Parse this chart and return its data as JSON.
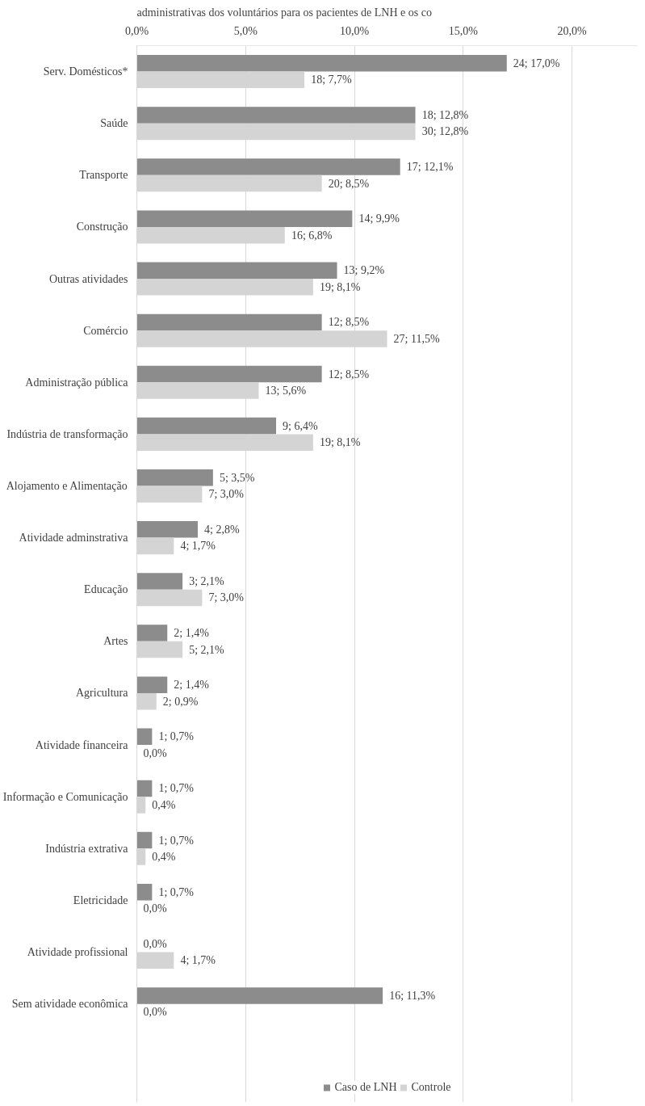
{
  "chart_data": {
    "type": "bar",
    "orientation": "horizontal",
    "title": "administrativas dos voluntários para os pacientes de LNH e os co",
    "categories": [
      "Serv. Domésticos*",
      "Saúde",
      "Transporte",
      "Construção",
      "Outras atividades",
      "Comércio",
      "Administração pública",
      "Indústria de transformação",
      "Alojamento e Alimentação",
      "Atividade adminstrativa",
      "Educação",
      "Artes",
      "Agricultura",
      "Atividade financeira",
      "Informação e Comunicação",
      "Indústria extrativa",
      "Eletricidade",
      "Atividade profissional",
      "Sem atividade econômica"
    ],
    "series": [
      {
        "name": "Caso de LNH",
        "color": "#8c8c8c",
        "values": [
          17.0,
          12.8,
          12.1,
          9.9,
          9.2,
          8.5,
          8.5,
          6.4,
          3.5,
          2.8,
          2.1,
          1.4,
          1.4,
          0.7,
          0.7,
          0.7,
          0.7,
          0.0,
          11.3
        ],
        "value_labels": [
          "24; 17,0%",
          "18; 12,8%",
          "17; 12,1%",
          "14; 9,9%",
          "13; 9,2%",
          "12; 8,5%",
          "12; 8,5%",
          "9; 6,4%",
          "5; 3,5%",
          "4; 2,8%",
          "3; 2,1%",
          "2; 1,4%",
          "2; 1,4%",
          "1; 0,7%",
          "1; 0,7%",
          "1; 0,7%",
          "1; 0,7%",
          "0,0%",
          "16; 11,3%"
        ]
      },
      {
        "name": "Controle",
        "color": "#d4d4d4",
        "values": [
          7.7,
          12.8,
          8.5,
          6.8,
          8.1,
          11.5,
          5.6,
          8.1,
          3.0,
          1.7,
          3.0,
          2.1,
          0.9,
          0.0,
          0.4,
          0.4,
          0.0,
          1.7,
          0.0
        ],
        "value_labels": [
          "18; 7,7%",
          "30; 12,8%",
          "20; 8,5%",
          "16; 6,8%",
          "19; 8,1%",
          "27; 11,5%",
          "13; 5,6%",
          "19; 8,1%",
          "7; 3,0%",
          "4; 1,7%",
          "7; 3,0%",
          "5; 2,1%",
          "2; 0,9%",
          "0,0%",
          "0,4%",
          "0,4%",
          "0,0%",
          "4; 1,7%",
          "0,0%"
        ]
      }
    ],
    "xlim": [
      0,
      23
    ],
    "xticks": [
      {
        "value": 0,
        "label": "0,0%"
      },
      {
        "value": 5,
        "label": "5,0%"
      },
      {
        "value": 10,
        "label": "10,0%"
      },
      {
        "value": 15,
        "label": "15,0%"
      },
      {
        "value": 20,
        "label": "20,0%"
      }
    ],
    "grid": "x",
    "legend": "bottom"
  }
}
